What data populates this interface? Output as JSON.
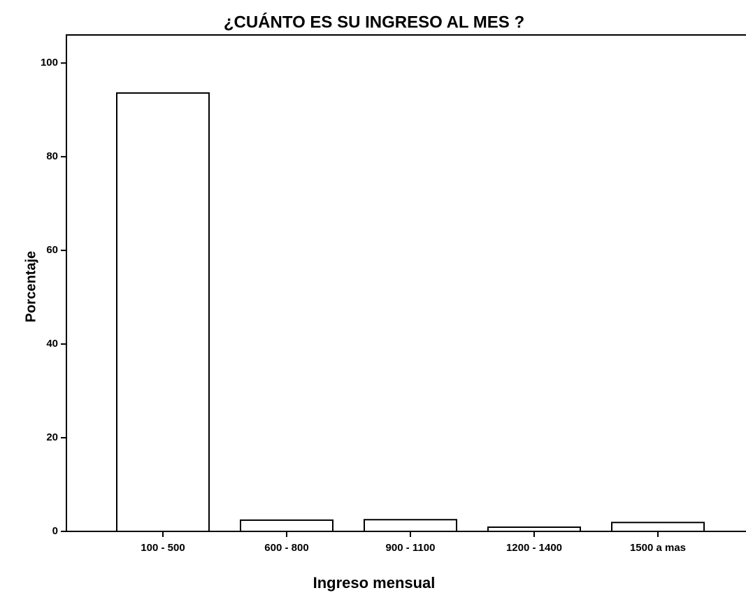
{
  "chart_data": {
    "type": "bar",
    "title": "¿CUÁNTO ES SU INGRESO AL MES ?",
    "x_label": "Ingreso mensual",
    "y_label": "Porcentaje",
    "categories": [
      "100 - 500",
      "600 - 800",
      "900 - 1100",
      "1200 - 1400",
      "1500 a mas"
    ],
    "values": [
      93.6,
      2.4,
      2.5,
      0.9,
      1.9
    ],
    "color": "#ffffff",
    "ylim": [
      0,
      106
    ],
    "yticks": [
      0,
      20,
      40,
      60,
      80,
      100
    ],
    "grid": false
  }
}
